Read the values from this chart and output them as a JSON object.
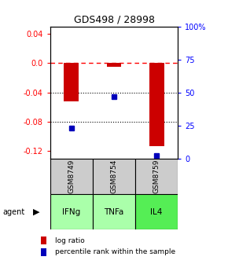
{
  "title": "GDS498 / 28998",
  "samples": [
    "GSM8749",
    "GSM8754",
    "GSM8759"
  ],
  "agents": [
    "IFNg",
    "TNFa",
    "IL4"
  ],
  "log_ratios": [
    -0.052,
    -0.005,
    -0.113
  ],
  "percentile_ranks": [
    23,
    47,
    2
  ],
  "ylim_left": [
    -0.13,
    0.05
  ],
  "ylim_right": [
    0,
    100
  ],
  "left_ticks": [
    0.04,
    0.0,
    -0.04,
    -0.08,
    -0.12
  ],
  "right_ticks": [
    100,
    75,
    50,
    25,
    0
  ],
  "right_tick_labels": [
    "100%",
    "75",
    "50",
    "25",
    "0"
  ],
  "zero_line": 0.0,
  "grid_values": [
    -0.04,
    -0.08
  ],
  "bar_color": "#cc0000",
  "dot_color": "#0000bb",
  "agent_colors": [
    "#aaffaa",
    "#aaffaa",
    "#55ee55"
  ],
  "sample_bg_color": "#cccccc",
  "legend_bar_color": "#cc0000",
  "legend_dot_color": "#0000bb",
  "bar_width": 0.35
}
